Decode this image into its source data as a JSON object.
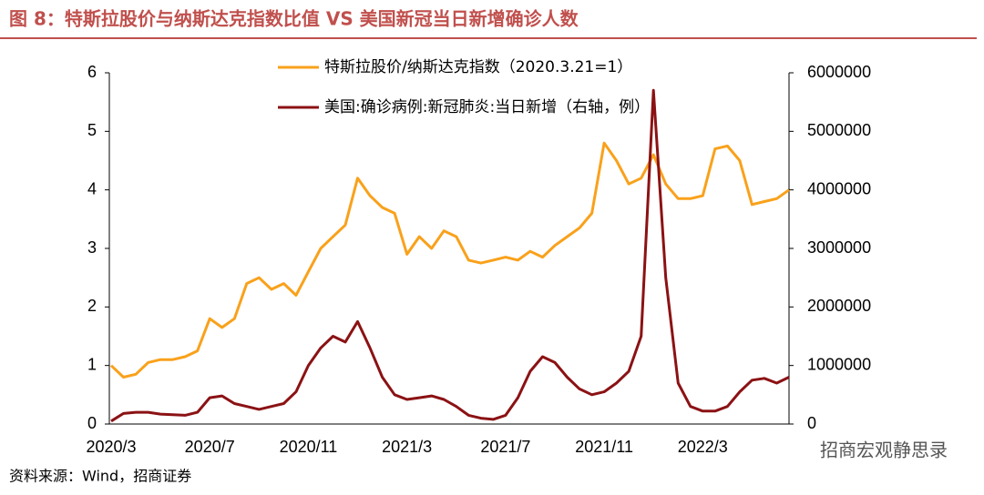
{
  "chart_data": {
    "type": "line",
    "title": "图 8：特斯拉股价与纳斯达克指数比值 VS 美国新冠当日新增确诊人数",
    "source": "资料来源：Wind，招商证券",
    "watermark": "招商宏观静思录",
    "categories": [
      "2020/3",
      null,
      null,
      null,
      null,
      null,
      null,
      null,
      "2020/7",
      null,
      null,
      null,
      null,
      null,
      null,
      null,
      "2020/11",
      null,
      null,
      null,
      null,
      null,
      null,
      null,
      "2021/3",
      null,
      null,
      null,
      null,
      null,
      null,
      null,
      "2021/7",
      null,
      null,
      null,
      null,
      null,
      null,
      null,
      "2021/11",
      null,
      null,
      null,
      null,
      null,
      null,
      null,
      "2022/3",
      null,
      null,
      null,
      null,
      null,
      null,
      null
    ],
    "series": [
      {
        "name": "特斯拉股价/纳斯达克指数（2020.3.21=1）",
        "color": "#f9a11b",
        "axis": "y",
        "values": [
          1.0,
          0.8,
          0.85,
          1.05,
          1.1,
          1.1,
          1.15,
          1.25,
          1.8,
          1.65,
          1.8,
          2.4,
          2.5,
          2.3,
          2.4,
          2.2,
          2.6,
          3.0,
          3.2,
          3.4,
          4.2,
          3.9,
          3.7,
          3.6,
          2.9,
          3.2,
          3.0,
          3.3,
          3.2,
          2.8,
          2.75,
          2.8,
          2.85,
          2.8,
          2.95,
          2.85,
          3.05,
          3.2,
          3.35,
          3.6,
          4.8,
          4.5,
          4.1,
          4.2,
          4.6,
          4.1,
          3.85,
          3.85,
          3.9,
          4.7,
          4.75,
          4.5,
          3.75,
          3.8,
          3.85,
          4.0
        ]
      },
      {
        "name": "美国:确诊病例:新冠肺炎:当日新增（右轴，例）",
        "color": "#8b1214",
        "axis": "y2",
        "values": [
          50000,
          180000,
          200000,
          200000,
          170000,
          160000,
          150000,
          200000,
          450000,
          480000,
          350000,
          300000,
          250000,
          300000,
          350000,
          550000,
          1000000,
          1300000,
          1500000,
          1400000,
          1750000,
          1300000,
          800000,
          500000,
          420000,
          450000,
          480000,
          420000,
          300000,
          150000,
          100000,
          80000,
          150000,
          450000,
          900000,
          1150000,
          1050000,
          800000,
          600000,
          500000,
          550000,
          700000,
          900000,
          1500000,
          5700000,
          2500000,
          700000,
          300000,
          220000,
          220000,
          300000,
          550000,
          750000,
          780000,
          700000,
          800000
        ]
      }
    ],
    "ylim": [
      0,
      6
    ],
    "yticks": [
      0,
      1,
      2,
      3,
      4,
      5,
      6
    ],
    "y2lim": [
      0,
      6000000
    ],
    "y2ticks": [
      0,
      1000000,
      2000000,
      3000000,
      4000000,
      5000000,
      6000000
    ],
    "legend": "top"
  }
}
